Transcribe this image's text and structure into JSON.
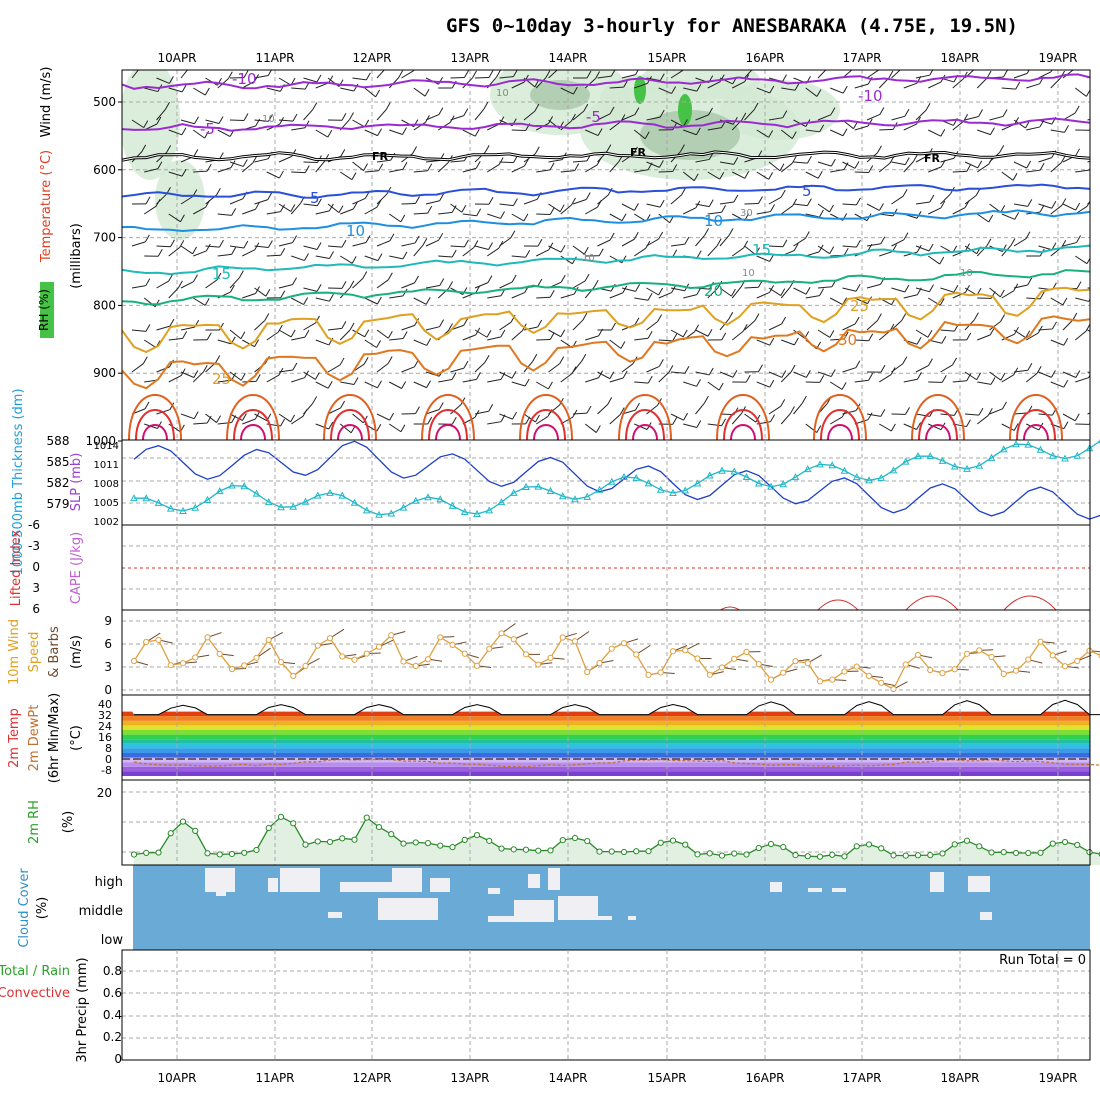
{
  "title": "GFS 0~10day 3-hourly for ANESBARAKA (4.75E, 19.5N)",
  "dates": [
    "10APR",
    "11APR",
    "12APR",
    "13APR",
    "14APR",
    "15APR",
    "16APR",
    "17APR",
    "18APR",
    "19APR"
  ],
  "panels": {
    "profile": {
      "label_rh": "RH (%)",
      "label_temp": "Temperature (°C)",
      "label_wind": "Wind (m/s)",
      "label_p": "(millibars)",
      "pressure_ticks": [
        "500",
        "600",
        "700",
        "800",
        "900",
        "1000"
      ],
      "isotherms": [
        {
          "label": "-10",
          "value": -10,
          "color": "#9a2bd0"
        },
        {
          "label": "-5",
          "value": -5,
          "color": "#9a2bd0"
        },
        {
          "label": "FR",
          "value": 0,
          "color": "#000000"
        },
        {
          "label": "5",
          "value": 5,
          "color": "#2a4fd8"
        },
        {
          "label": "10",
          "value": 10,
          "color": "#1e8fe0"
        },
        {
          "label": "15",
          "value": 15,
          "color": "#20b8b8"
        },
        {
          "label": "20",
          "value": 20,
          "color": "#18b080"
        },
        {
          "label": "25",
          "value": 25,
          "color": "#e0a020"
        },
        {
          "label": "30",
          "value": 30,
          "color": "#e07820"
        }
      ],
      "rh_contours": [
        "10",
        "30"
      ],
      "near_surface_label": "25"
    },
    "thickness": {
      "label_thick": "1000-500mb Thickness (dm)",
      "label_slp": "SLP (mb)",
      "thick_ticks": [
        "588",
        "585",
        "582",
        "579"
      ],
      "slp_ticks": [
        "1014",
        "1011",
        "1008",
        "1005",
        "1002"
      ],
      "color_thick": "#1d3fc8",
      "color_slp": "#20b8c8"
    },
    "stability": {
      "label_li": "Lifted Index",
      "label_cape": "CAPE (J/kg)",
      "li_ticks": [
        "-6",
        "-3",
        "0",
        "3",
        "6"
      ]
    },
    "wind10": {
      "label_a": "10m Wind",
      "label_b": "Speed",
      "label_c": "& Barbs",
      "label_unit": "(m/s)",
      "ticks": [
        "9",
        "6",
        "3",
        "0"
      ]
    },
    "temp2m": {
      "label_a": "2m Temp",
      "label_b": "2m DewPt",
      "label_c": "(6hr Min/Max)",
      "label_unit": "(°C)",
      "ticks": [
        "40",
        "32",
        "24",
        "16",
        "8",
        "0",
        "-8"
      ]
    },
    "rh2m": {
      "label_a": "2m RH",
      "label_unit": "(%)",
      "ticks": [
        "20"
      ]
    },
    "cloud": {
      "label_a": "Cloud Cover",
      "label_unit": "(%)",
      "levels": [
        "high",
        "middle",
        "low"
      ]
    },
    "precip": {
      "label_a": "3hr Precip (mm)",
      "label_b": "Total / Rain",
      "label_c": "Convective",
      "ticks": [
        "0.8",
        "0.6",
        "0.4",
        "0.2",
        "0"
      ],
      "run_total": "Run Total = 0"
    }
  },
  "chart_data": [
    {
      "type": "line",
      "title": "1000-500mb Thickness (dm)",
      "x": [
        "10APR",
        "11APR",
        "12APR",
        "13APR",
        "14APR",
        "15APR",
        "16APR",
        "17APR",
        "18APR",
        "19APR"
      ],
      "series": [
        {
          "name": "Thickness",
          "values": [
            585.5,
            584.5,
            586,
            584,
            583.5,
            582,
            581.5,
            580,
            579.5,
            579
          ]
        }
      ],
      "ylim": [
        576,
        588
      ]
    },
    {
      "type": "line",
      "title": "SLP (mb)",
      "x": [
        "10APR",
        "11APR",
        "12APR",
        "13APR",
        "14APR",
        "15APR",
        "16APR",
        "17APR",
        "18APR",
        "19APR"
      ],
      "series": [
        {
          "name": "SLP",
          "values": [
            1004.5,
            1006.5,
            1005,
            1004.5,
            1007,
            1008,
            1009,
            1010,
            1012,
            1013.5
          ]
        }
      ],
      "ylim": [
        1002,
        1014
      ]
    },
    {
      "type": "line",
      "title": "10m Wind Speed (m/s)",
      "x": [
        "10APR",
        "11APR",
        "12APR",
        "13APR",
        "14APR",
        "15APR",
        "16APR",
        "17APR",
        "18APR",
        "19APR"
      ],
      "series": [
        {
          "name": "Speed",
          "values": [
            5,
            4,
            5,
            5,
            5,
            4,
            3,
            2,
            4,
            4
          ]
        }
      ],
      "ylim": [
        0,
        10
      ]
    },
    {
      "type": "line",
      "title": "2m RH (%)",
      "x": [
        "10APR",
        "11APR",
        "12APR",
        "13APR",
        "14APR",
        "15APR",
        "16APR",
        "17APR",
        "18APR",
        "19APR"
      ],
      "series": [
        {
          "name": "RH",
          "values": [
            4,
            4,
            9,
            6,
            5,
            4,
            3,
            3,
            4,
            4
          ]
        }
      ],
      "ylim": [
        0,
        25
      ]
    },
    {
      "type": "line",
      "title": "2m Temp (°C)",
      "x": [
        "10APR",
        "11APR",
        "12APR",
        "13APR",
        "14APR",
        "15APR",
        "16APR",
        "17APR",
        "18APR",
        "19APR"
      ],
      "series": [
        {
          "name": "Temp max",
          "values": [
            37,
            38,
            38,
            38,
            38,
            38,
            40,
            40,
            41,
            41
          ]
        }
      ],
      "ylim": [
        -12,
        44
      ]
    }
  ]
}
